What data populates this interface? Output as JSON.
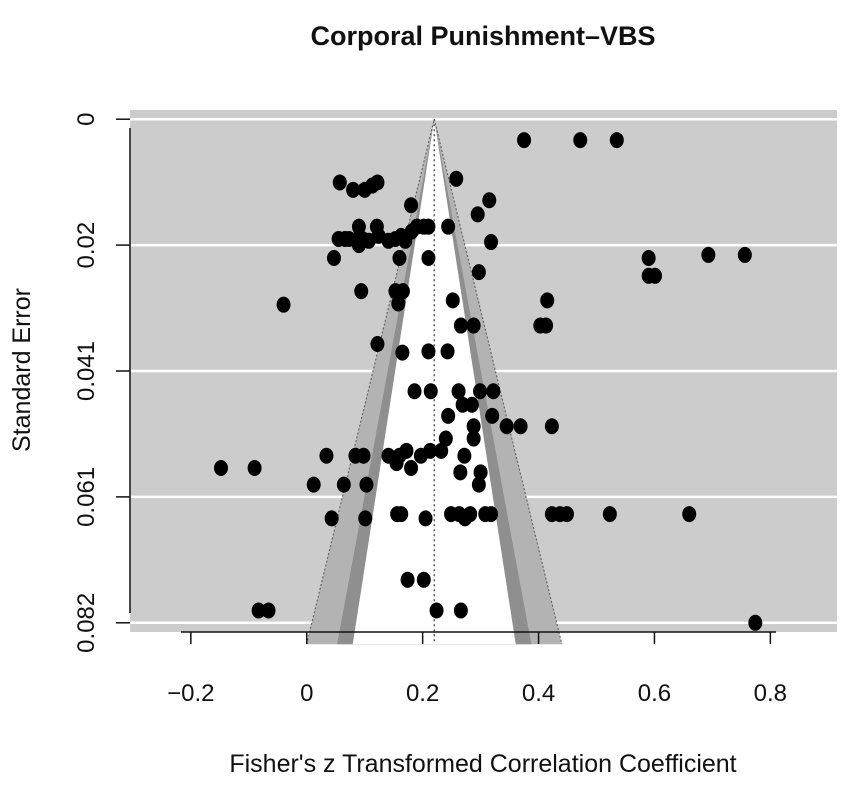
{
  "chart_data": {
    "type": "scatter",
    "subtype": "funnel plot",
    "title": "Corporal Punishment–VBS",
    "xlabel": "Fisher's z Transformed Correlation Coefficient",
    "ylabel": "Standard Error",
    "xlim": [
      -0.305,
      0.915
    ],
    "ylim": [
      0.0835,
      -0.0015
    ],
    "y_reversed": true,
    "x_ticks": [
      {
        "value": -0.2,
        "label": "−0.2"
      },
      {
        "value": 0,
        "label": "0"
      },
      {
        "value": 0.2,
        "label": "0.2"
      },
      {
        "value": 0.4,
        "label": "0.4"
      },
      {
        "value": 0.6,
        "label": "0.6"
      },
      {
        "value": 0.8,
        "label": "0.8"
      }
    ],
    "y_ticks": [
      {
        "value": 0,
        "label": "0"
      },
      {
        "value": 0.0205,
        "label": "0.02"
      },
      {
        "value": 0.041,
        "label": "0.041"
      },
      {
        "value": 0.0615,
        "label": "0.061"
      },
      {
        "value": 0.082,
        "label": "0.082"
      }
    ],
    "grid": "horizontal",
    "funnel_center": 0.22,
    "funnel_max_se": 0.0855,
    "contour_z": [
      1.645,
      1.96,
      2.576
    ],
    "colors": {
      "plot_background": "#cccccc",
      "contour_outer": "#b3b3b3",
      "contour_middle": "#8f8f8f",
      "funnel_inner": "#ffffff",
      "grid": "#ffffff",
      "points": "#000000"
    },
    "points": [
      {
        "x": 0.375,
        "y": 0.0034
      },
      {
        "x": 0.472,
        "y": 0.0034
      },
      {
        "x": 0.535,
        "y": 0.0034
      },
      {
        "x": 0.057,
        "y": 0.0103
      },
      {
        "x": 0.08,
        "y": 0.0115
      },
      {
        "x": 0.1,
        "y": 0.0115
      },
      {
        "x": 0.113,
        "y": 0.0108
      },
      {
        "x": 0.122,
        "y": 0.0103
      },
      {
        "x": 0.258,
        "y": 0.0097
      },
      {
        "x": 0.315,
        "y": 0.0132
      },
      {
        "x": 0.18,
        "y": 0.014
      },
      {
        "x": 0.295,
        "y": 0.0155
      },
      {
        "x": 0.09,
        "y": 0.0175
      },
      {
        "x": 0.121,
        "y": 0.0175
      },
      {
        "x": 0.055,
        "y": 0.0195
      },
      {
        "x": 0.066,
        "y": 0.0195
      },
      {
        "x": 0.073,
        "y": 0.0195
      },
      {
        "x": 0.088,
        "y": 0.0195
      },
      {
        "x": 0.096,
        "y": 0.0195
      },
      {
        "x": 0.107,
        "y": 0.0198
      },
      {
        "x": 0.124,
        "y": 0.019
      },
      {
        "x": 0.141,
        "y": 0.0198
      },
      {
        "x": 0.153,
        "y": 0.0195
      },
      {
        "x": 0.163,
        "y": 0.019
      },
      {
        "x": 0.17,
        "y": 0.0198
      },
      {
        "x": 0.181,
        "y": 0.0183
      },
      {
        "x": 0.19,
        "y": 0.0175
      },
      {
        "x": 0.202,
        "y": 0.0175
      },
      {
        "x": 0.21,
        "y": 0.0175
      },
      {
        "x": 0.244,
        "y": 0.0175
      },
      {
        "x": 0.318,
        "y": 0.02
      },
      {
        "x": 0.047,
        "y": 0.0226
      },
      {
        "x": 0.09,
        "y": 0.0205
      },
      {
        "x": 0.16,
        "y": 0.0226
      },
      {
        "x": 0.21,
        "y": 0.0226
      },
      {
        "x": 0.59,
        "y": 0.0226
      },
      {
        "x": 0.693,
        "y": 0.0221
      },
      {
        "x": 0.756,
        "y": 0.0221
      },
      {
        "x": 0.59,
        "y": 0.0255
      },
      {
        "x": 0.601,
        "y": 0.0255
      },
      {
        "x": 0.297,
        "y": 0.0249
      },
      {
        "x": 0.153,
        "y": 0.028
      },
      {
        "x": 0.166,
        "y": 0.028
      },
      {
        "x": 0.094,
        "y": 0.028
      },
      {
        "x": -0.04,
        "y": 0.0302
      },
      {
        "x": 0.158,
        "y": 0.03
      },
      {
        "x": 0.252,
        "y": 0.0295
      },
      {
        "x": 0.415,
        "y": 0.0295
      },
      {
        "x": 0.403,
        "y": 0.0336
      },
      {
        "x": 0.413,
        "y": 0.0336
      },
      {
        "x": 0.266,
        "y": 0.0336
      },
      {
        "x": 0.288,
        "y": 0.0336
      },
      {
        "x": 0.122,
        "y": 0.0366
      },
      {
        "x": 0.165,
        "y": 0.038
      },
      {
        "x": 0.21,
        "y": 0.0378
      },
      {
        "x": 0.243,
        "y": 0.0378
      },
      {
        "x": 0.186,
        "y": 0.0443
      },
      {
        "x": 0.214,
        "y": 0.0443
      },
      {
        "x": 0.262,
        "y": 0.0443
      },
      {
        "x": 0.299,
        "y": 0.0443
      },
      {
        "x": 0.322,
        "y": 0.0443
      },
      {
        "x": 0.269,
        "y": 0.0465
      },
      {
        "x": 0.285,
        "y": 0.0465
      },
      {
        "x": 0.244,
        "y": 0.0483
      },
      {
        "x": 0.32,
        "y": 0.0483
      },
      {
        "x": 0.345,
        "y": 0.05
      },
      {
        "x": 0.369,
        "y": 0.05
      },
      {
        "x": 0.423,
        "y": 0.05
      },
      {
        "x": 0.288,
        "y": 0.05
      },
      {
        "x": 0.288,
        "y": 0.052
      },
      {
        "x": 0.24,
        "y": 0.052
      },
      {
        "x": 0.172,
        "y": 0.054
      },
      {
        "x": 0.16,
        "y": 0.0548
      },
      {
        "x": 0.213,
        "y": 0.054
      },
      {
        "x": 0.084,
        "y": 0.0548
      },
      {
        "x": 0.098,
        "y": 0.0548
      },
      {
        "x": 0.141,
        "y": 0.0548
      },
      {
        "x": 0.034,
        "y": 0.0548
      },
      {
        "x": 0.155,
        "y": 0.056
      },
      {
        "x": 0.197,
        "y": 0.0548
      },
      {
        "x": 0.232,
        "y": 0.054
      },
      {
        "x": 0.272,
        "y": 0.0548
      },
      {
        "x": -0.148,
        "y": 0.0568
      },
      {
        "x": -0.09,
        "y": 0.0568
      },
      {
        "x": 0.18,
        "y": 0.0568
      },
      {
        "x": 0.265,
        "y": 0.0575
      },
      {
        "x": 0.3,
        "y": 0.0575
      },
      {
        "x": 0.012,
        "y": 0.0595
      },
      {
        "x": 0.064,
        "y": 0.0595
      },
      {
        "x": 0.103,
        "y": 0.0595
      },
      {
        "x": 0.297,
        "y": 0.0595
      },
      {
        "x": 0.043,
        "y": 0.065
      },
      {
        "x": 0.101,
        "y": 0.065
      },
      {
        "x": 0.156,
        "y": 0.0643
      },
      {
        "x": 0.163,
        "y": 0.0643
      },
      {
        "x": 0.205,
        "y": 0.065
      },
      {
        "x": 0.249,
        "y": 0.0643
      },
      {
        "x": 0.263,
        "y": 0.0643
      },
      {
        "x": 0.273,
        "y": 0.065
      },
      {
        "x": 0.282,
        "y": 0.0643
      },
      {
        "x": 0.308,
        "y": 0.0643
      },
      {
        "x": 0.318,
        "y": 0.0643
      },
      {
        "x": 0.423,
        "y": 0.0643
      },
      {
        "x": 0.437,
        "y": 0.0643
      },
      {
        "x": 0.449,
        "y": 0.0643
      },
      {
        "x": 0.523,
        "y": 0.0643
      },
      {
        "x": 0.66,
        "y": 0.0643
      },
      {
        "x": 0.174,
        "y": 0.075
      },
      {
        "x": 0.202,
        "y": 0.075
      },
      {
        "x": -0.083,
        "y": 0.08
      },
      {
        "x": -0.066,
        "y": 0.08
      },
      {
        "x": 0.224,
        "y": 0.08
      },
      {
        "x": 0.266,
        "y": 0.08
      },
      {
        "x": 0.774,
        "y": 0.082
      }
    ]
  }
}
